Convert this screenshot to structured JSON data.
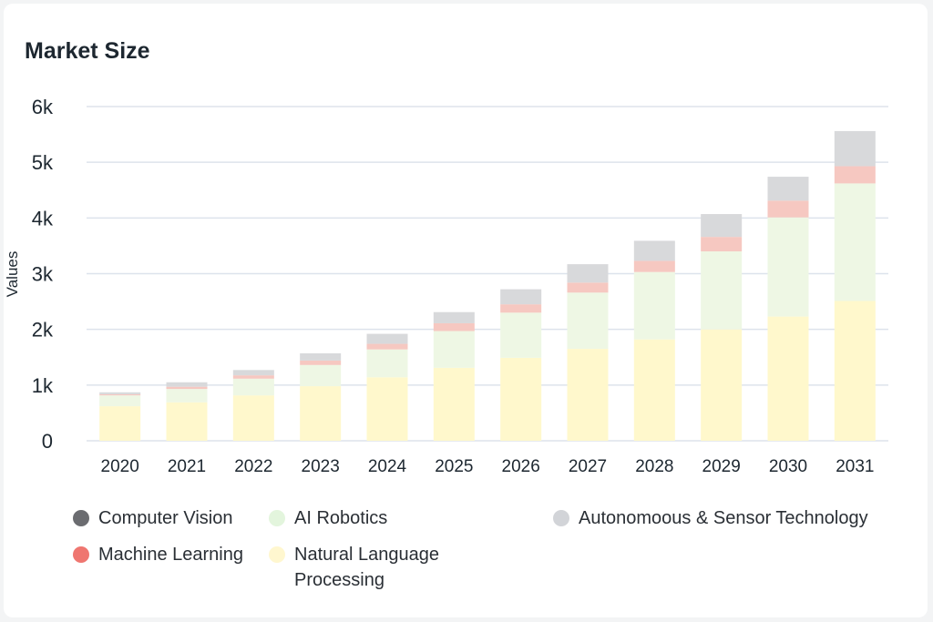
{
  "chart_data": {
    "type": "bar",
    "stacked": true,
    "title": "Market Size",
    "xlabel": "",
    "ylabel": "Values",
    "ylim": [
      0,
      6000
    ],
    "yticks": [
      {
        "v": 0,
        "label": "0"
      },
      {
        "v": 1000,
        "label": "1k"
      },
      {
        "v": 2000,
        "label": "2k"
      },
      {
        "v": 3000,
        "label": "3k"
      },
      {
        "v": 4000,
        "label": "4k"
      },
      {
        "v": 5000,
        "label": "5k"
      },
      {
        "v": 6000,
        "label": "6k"
      }
    ],
    "grid": true,
    "legend_position": "bottom",
    "categories": [
      "2020",
      "2021",
      "2022",
      "2023",
      "2024",
      "2025",
      "2026",
      "2027",
      "2028",
      "2029",
      "2030",
      "2031"
    ],
    "series": [
      {
        "name": "Computer Vision",
        "color": "#6b6c70",
        "bar_color": "#6b6c70",
        "values": [
          0,
          0,
          0,
          0,
          0,
          0,
          0,
          0,
          0,
          0,
          0,
          0
        ]
      },
      {
        "name": "Natural Language Processing",
        "color": "#fff7cf",
        "bar_color": "#fff8cc",
        "values": [
          620,
          690,
          815,
          980,
          1140,
          1310,
          1490,
          1650,
          1820,
          2000,
          2230,
          2510
        ]
      },
      {
        "name": "AI Robotics",
        "color": "#e3f5dd",
        "bar_color": "#eef7e4",
        "values": [
          195,
          240,
          300,
          380,
          500,
          660,
          810,
          1010,
          1210,
          1400,
          1780,
          2110
        ]
      },
      {
        "name": "Machine Learning",
        "color": "#ef7670",
        "bar_color": "#f6c8c1",
        "values": [
          20,
          40,
          60,
          80,
          100,
          140,
          150,
          180,
          200,
          260,
          300,
          310
        ]
      },
      {
        "name": "Autonomoous & Sensor Technology",
        "color": "#d2d4d8",
        "bar_color": "#d8d9db",
        "values": [
          35,
          80,
          95,
          130,
          180,
          200,
          270,
          330,
          360,
          410,
          430,
          630
        ]
      }
    ]
  },
  "legend": [
    {
      "label": "Computer Vision",
      "color": "#6b6c70"
    },
    {
      "label": "AI Robotics",
      "color": "#e3f5dd"
    },
    {
      "label": "Autonomoous & Sensor Technology",
      "color": "#d2d4d8"
    },
    {
      "label": "Machine Learning",
      "color": "#ef7670"
    },
    {
      "label": "Natural Language Processing",
      "color": "#fff7cf"
    }
  ]
}
